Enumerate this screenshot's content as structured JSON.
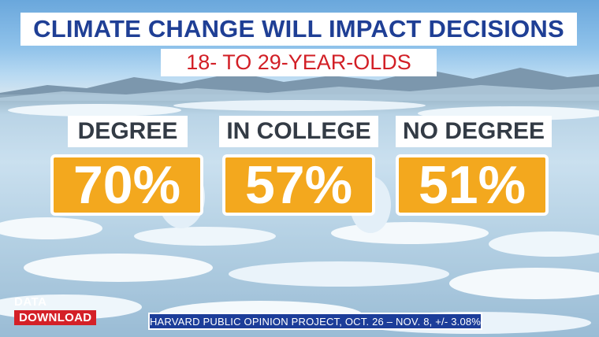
{
  "header": {
    "title": "CLIMATE CHANGE WILL IMPACT DECISIONS",
    "subtitle": "18- TO 29-YEAR-OLDS"
  },
  "stats": [
    {
      "label": "DEGREE",
      "value": "70%"
    },
    {
      "label": "IN COLLEGE",
      "value": "57%"
    },
    {
      "label": "NO DEGREE",
      "value": "51%"
    }
  ],
  "logo": {
    "line1": "DATA",
    "line2": "DOWNLOAD"
  },
  "footer": {
    "source": "HARVARD PUBLIC OPINION PROJECT, OCT. 26 – NOV. 8, +/- 3.08%"
  },
  "colors": {
    "title_text": "#1f3f95",
    "subtitle_text": "#d21f26",
    "value_box": "#f3a81e",
    "footer_box": "#1c3d99",
    "logo_red": "#d42027"
  }
}
